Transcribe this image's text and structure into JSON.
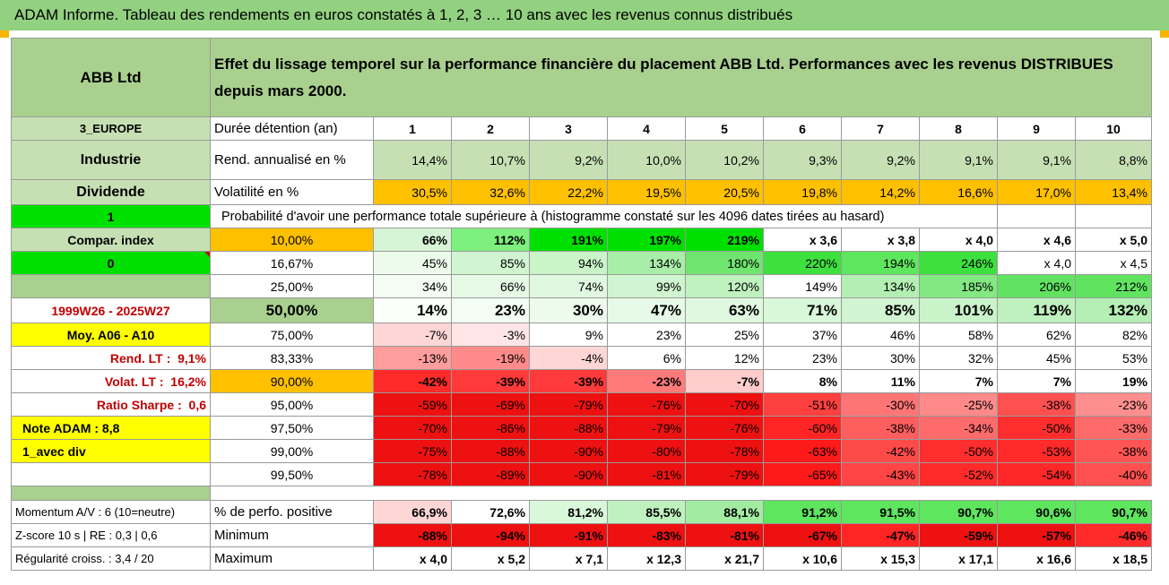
{
  "title": "ADAM Informe. Tableau des rendements en euros constatés à 1, 2, 3 … 10 ans avec les revenus connus distribués",
  "header": {
    "company": "ABB Ltd",
    "description": "Effet du lissage temporel sur la performance financière du placement ABB Ltd. Performances avec les revenus DISTRIBUES depuis mars 2000."
  },
  "side": {
    "region": "3_EUROPE",
    "sector": "Industrie",
    "dividend": "Dividende",
    "one": "1",
    "compar": "Compar. index",
    "zero": "0",
    "period": "1999W26 - 2025W27",
    "moy": "Moy. A06 - A10",
    "rend_lt_label": "Rend. LT :",
    "rend_lt_value": "9,1%",
    "volat_lt_label": "Volat. LT :",
    "volat_lt_value": "16,2%",
    "sharpe_label": "Ratio Sharpe :",
    "sharpe_value": "0,6",
    "note": "Note ADAM : 8,8",
    "div": "1_avec div"
  },
  "labels": {
    "duree": "Durée détention (an)",
    "rend": "Rend. annualisé en %",
    "volat": "Volatilité en %",
    "proba": "Probabilité d'avoir une performance totale supérieure à (histogramme constaté sur les 4096 dates tirées au hasard)",
    "positive": "% de perfo. positive",
    "minimum": "Minimum",
    "maximum": "Maximum",
    "momentum": "Momentum A/V : 6 (10=neutre)",
    "zscore": "Z-score 10 s | RE : 0,3 | 0,6",
    "regularite": "Régularité croiss. : 3,4 / 20"
  },
  "years": [
    "1",
    "2",
    "3",
    "4",
    "5",
    "6",
    "7",
    "8",
    "9",
    "10"
  ],
  "rend": [
    "14,4%",
    "10,7%",
    "9,2%",
    "10,0%",
    "10,2%",
    "9,3%",
    "9,2%",
    "9,1%",
    "9,1%",
    "8,8%"
  ],
  "volat": [
    "30,5%",
    "32,6%",
    "22,2%",
    "19,5%",
    "20,5%",
    "19,8%",
    "14,2%",
    "16,6%",
    "17,0%",
    "13,4%"
  ],
  "prob_rows": [
    {
      "p": "10,00%",
      "v": [
        "66%",
        "112%",
        "191%",
        "197%",
        "219%",
        "x 3,6",
        "x 3,8",
        "x 4,0",
        "x 4,6",
        "x 5,0"
      ]
    },
    {
      "p": "16,67%",
      "v": [
        "45%",
        "85%",
        "94%",
        "134%",
        "180%",
        "220%",
        "194%",
        "246%",
        "x 4,0",
        "x 4,5"
      ]
    },
    {
      "p": "25,00%",
      "v": [
        "34%",
        "66%",
        "74%",
        "99%",
        "120%",
        "149%",
        "134%",
        "185%",
        "206%",
        "212%"
      ]
    },
    {
      "p": "50,00%",
      "v": [
        "14%",
        "23%",
        "30%",
        "47%",
        "63%",
        "71%",
        "85%",
        "101%",
        "119%",
        "132%"
      ]
    },
    {
      "p": "75,00%",
      "v": [
        "-7%",
        "-3%",
        "9%",
        "23%",
        "25%",
        "37%",
        "46%",
        "58%",
        "62%",
        "82%"
      ]
    },
    {
      "p": "83,33%",
      "v": [
        "-13%",
        "-19%",
        "-4%",
        "6%",
        "12%",
        "23%",
        "30%",
        "32%",
        "45%",
        "53%"
      ]
    },
    {
      "p": "90,00%",
      "v": [
        "-42%",
        "-39%",
        "-39%",
        "-23%",
        "-7%",
        "8%",
        "11%",
        "7%",
        "7%",
        "19%"
      ]
    },
    {
      "p": "95,00%",
      "v": [
        "-59%",
        "-69%",
        "-79%",
        "-76%",
        "-70%",
        "-51%",
        "-30%",
        "-25%",
        "-38%",
        "-23%"
      ]
    },
    {
      "p": "97,50%",
      "v": [
        "-70%",
        "-86%",
        "-88%",
        "-79%",
        "-76%",
        "-60%",
        "-38%",
        "-34%",
        "-50%",
        "-33%"
      ]
    },
    {
      "p": "99,00%",
      "v": [
        "-75%",
        "-88%",
        "-90%",
        "-80%",
        "-78%",
        "-63%",
        "-42%",
        "-50%",
        "-53%",
        "-38%"
      ]
    },
    {
      "p": "99,50%",
      "v": [
        "-78%",
        "-89%",
        "-90%",
        "-81%",
        "-79%",
        "-65%",
        "-43%",
        "-52%",
        "-54%",
        "-40%"
      ]
    }
  ],
  "positive": [
    "66,9%",
    "72,6%",
    "81,2%",
    "85,5%",
    "88,1%",
    "91,2%",
    "91,5%",
    "90,7%",
    "90,6%",
    "90,7%"
  ],
  "minimum": [
    "-88%",
    "-94%",
    "-91%",
    "-83%",
    "-81%",
    "-67%",
    "-47%",
    "-59%",
    "-57%",
    "-46%"
  ],
  "maximum": [
    "x 4,0",
    "x 5,2",
    "x 7,1",
    "x 12,3",
    "x 21,7",
    "x 10,6",
    "x 15,3",
    "x 17,1",
    "x 16,6",
    "x 18,5"
  ],
  "colors": {
    "title_bg": "#92d180",
    "header_green": "#a9d08e",
    "rend_bg": "#c6e0b4",
    "volat_orange": "#ffc000",
    "bright_green": "#00e000",
    "yellow": "#ffff00",
    "dark_red_text": "#c00000"
  }
}
